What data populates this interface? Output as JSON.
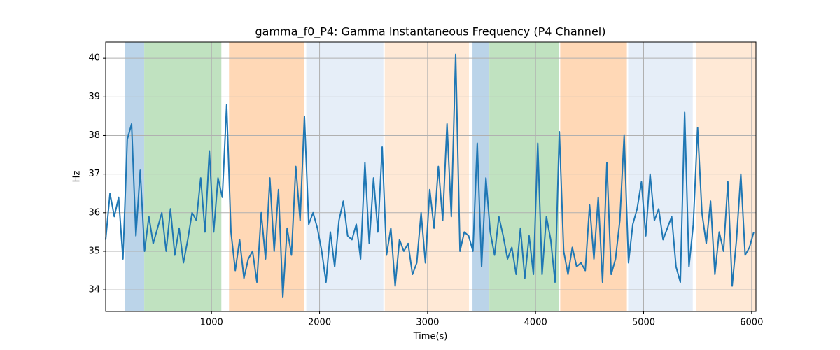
{
  "chart_data": {
    "type": "line",
    "title": "gamma_f0_P4: Gamma Instantaneous Frequency (P4 Channel)",
    "xlabel": "Time(s)",
    "ylabel": "Hz",
    "x": [
      20,
      60,
      100,
      140,
      180,
      220,
      260,
      300,
      340,
      380,
      420,
      460,
      500,
      540,
      580,
      620,
      660,
      700,
      740,
      780,
      820,
      860,
      900,
      940,
      980,
      1020,
      1060,
      1100,
      1140,
      1180,
      1220,
      1260,
      1300,
      1340,
      1380,
      1420,
      1460,
      1500,
      1540,
      1580,
      1620,
      1660,
      1700,
      1740,
      1780,
      1820,
      1860,
      1900,
      1940,
      1980,
      2020,
      2060,
      2100,
      2140,
      2180,
      2220,
      2260,
      2300,
      2340,
      2380,
      2420,
      2460,
      2500,
      2540,
      2580,
      2620,
      2660,
      2700,
      2740,
      2780,
      2820,
      2860,
      2900,
      2940,
      2980,
      3020,
      3060,
      3100,
      3140,
      3180,
      3220,
      3260,
      3300,
      3340,
      3380,
      3420,
      3460,
      3500,
      3540,
      3580,
      3620,
      3660,
      3700,
      3740,
      3780,
      3820,
      3860,
      3900,
      3940,
      3980,
      4020,
      4060,
      4100,
      4140,
      4180,
      4220,
      4260,
      4300,
      4340,
      4380,
      4420,
      4460,
      4500,
      4540,
      4580,
      4620,
      4660,
      4700,
      4740,
      4780,
      4820,
      4860,
      4900,
      4940,
      4980,
      5020,
      5060,
      5100,
      5140,
      5180,
      5220,
      5260,
      5300,
      5340,
      5380,
      5420,
      5460,
      5500,
      5540,
      5580,
      5620,
      5660,
      5700,
      5740,
      5780,
      5820,
      5860,
      5900,
      5940,
      5980,
      6020
    ],
    "series": [
      {
        "name": "gamma_f0_P4",
        "color": "#1f77b4",
        "values": [
          35.3,
          36.5,
          35.9,
          36.4,
          34.8,
          37.9,
          38.3,
          35.4,
          37.1,
          35.0,
          35.9,
          35.2,
          35.6,
          36.0,
          35.0,
          36.1,
          34.9,
          35.6,
          34.7,
          35.3,
          36.0,
          35.8,
          36.9,
          35.5,
          37.6,
          35.5,
          36.9,
          36.4,
          38.8,
          35.5,
          34.5,
          35.3,
          34.3,
          34.8,
          35.0,
          34.2,
          36.0,
          34.8,
          36.9,
          35.0,
          36.6,
          33.8,
          35.6,
          34.9,
          37.2,
          35.8,
          38.5,
          35.7,
          36.0,
          35.6,
          35.0,
          34.2,
          35.5,
          34.6,
          35.8,
          36.3,
          35.4,
          35.3,
          35.7,
          34.8,
          37.3,
          35.2,
          36.9,
          35.5,
          37.7,
          34.9,
          35.6,
          34.1,
          35.3,
          35.0,
          35.2,
          34.4,
          34.7,
          36.0,
          34.7,
          36.6,
          35.6,
          37.2,
          35.8,
          38.3,
          35.9,
          40.1,
          35.0,
          35.5,
          35.4,
          35.0,
          37.8,
          34.6,
          36.9,
          35.5,
          34.9,
          35.9,
          35.4,
          34.8,
          35.1,
          34.4,
          35.6,
          34.3,
          35.4,
          34.4,
          37.8,
          34.4,
          35.9,
          35.3,
          34.2,
          38.1,
          35.0,
          34.4,
          35.1,
          34.6,
          34.7,
          34.5,
          36.2,
          34.8,
          36.4,
          34.2,
          37.3,
          34.4,
          34.8,
          35.8,
          38.0,
          34.7,
          35.7,
          36.1,
          36.8,
          35.4,
          37.0,
          35.8,
          36.1,
          35.3,
          35.6,
          35.9,
          34.6,
          34.2,
          38.6,
          34.6,
          35.7,
          38.2,
          36.0,
          35.2,
          36.3,
          34.4,
          35.5,
          35.0,
          36.8,
          34.1,
          35.3,
          37.0,
          34.9,
          35.1,
          35.5
        ]
      }
    ],
    "spans": [
      {
        "start": 195,
        "end": 377,
        "color": "#bbd4e9"
      },
      {
        "start": 377,
        "end": 1091,
        "color": "#c0e2c0"
      },
      {
        "start": 1162,
        "end": 1857,
        "color": "#ffd8b6"
      },
      {
        "start": 1877,
        "end": 2591,
        "color": "#e6eef8"
      },
      {
        "start": 2604,
        "end": 3383,
        "color": "#ffe9d6"
      },
      {
        "start": 3416,
        "end": 3572,
        "color": "#bbd4e9"
      },
      {
        "start": 3572,
        "end": 4215,
        "color": "#c0e2c0"
      },
      {
        "start": 4228,
        "end": 4845,
        "color": "#ffd8b6"
      },
      {
        "start": 4857,
        "end": 5455,
        "color": "#e6eef8"
      },
      {
        "start": 5487,
        "end": 6040,
        "color": "#ffe9d6"
      }
    ],
    "xlim": [
      20,
      6040
    ],
    "ylim": [
      33.44,
      40.42
    ],
    "xticks": [
      1000,
      2000,
      3000,
      4000,
      5000,
      6000
    ],
    "yticks": [
      34,
      35,
      36,
      37,
      38,
      39,
      40
    ],
    "grid": true
  }
}
